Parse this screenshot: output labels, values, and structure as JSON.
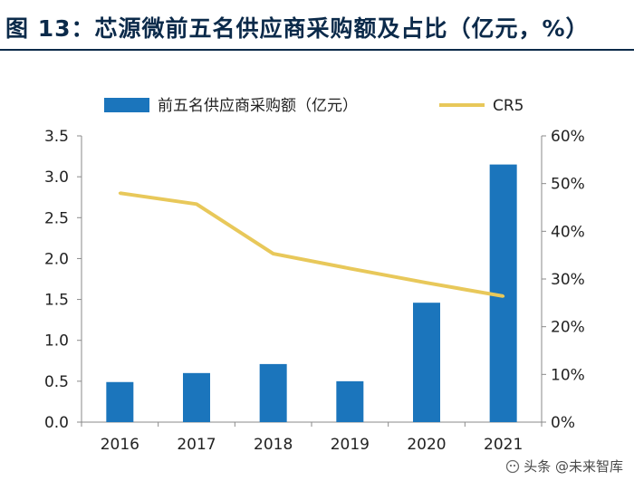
{
  "figure": {
    "title": "图 13：芯源微前五名供应商采购额及占比（亿元，%）"
  },
  "chart_data": {
    "type": "bar",
    "categories": [
      "2016",
      "2017",
      "2018",
      "2019",
      "2020",
      "2021"
    ],
    "series": [
      {
        "name": "前五名供应商采购额（亿元）",
        "type": "bar",
        "axis": "left",
        "color": "#1b75bc",
        "values": [
          0.49,
          0.6,
          0.71,
          0.5,
          1.46,
          3.15
        ]
      },
      {
        "name": "CR5",
        "type": "line",
        "axis": "right",
        "color": "#e8c85a",
        "values": [
          48,
          45.7,
          35.3,
          32.2,
          29.2,
          26.4
        ]
      }
    ],
    "y_left": {
      "ylim": [
        0,
        3.5
      ],
      "ticks": [
        "0.0",
        "0.5",
        "1.0",
        "1.5",
        "2.0",
        "2.5",
        "3.0",
        "3.5"
      ]
    },
    "y_right": {
      "ylim": [
        0,
        60
      ],
      "ticks": [
        "0%",
        "10%",
        "20%",
        "30%",
        "40%",
        "50%",
        "60%"
      ]
    },
    "legend_position": "top",
    "grid": false
  },
  "watermark": {
    "text": "头条 @未来智库"
  }
}
